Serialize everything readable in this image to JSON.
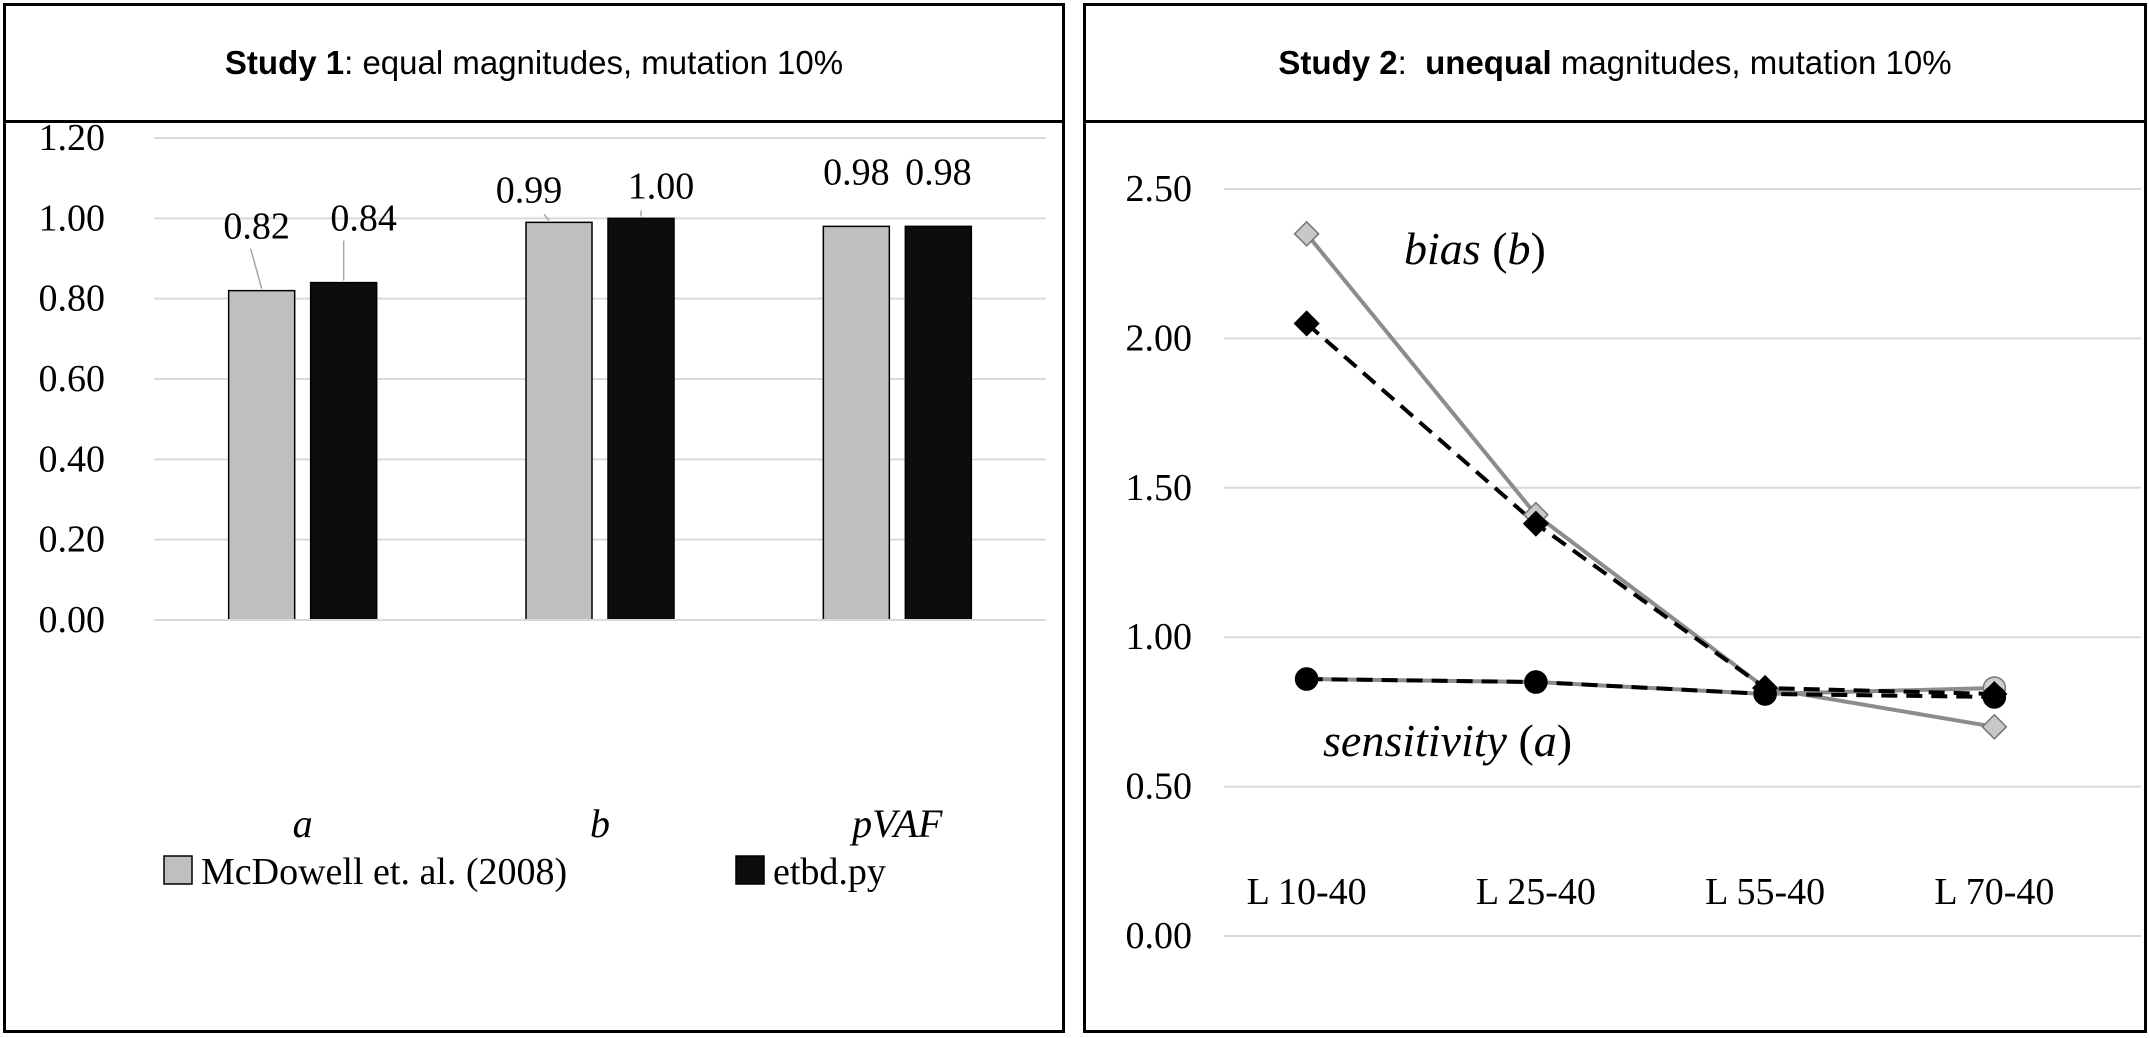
{
  "study1": {
    "title_bold": "Study 1",
    "title_rest": ": equal magnitudes, mutation 10%"
  },
  "study2": {
    "title_bold": "Study 2",
    "title_sep": ":  ",
    "title_bold2": "unequal",
    "title_rest": " magnitudes, mutation 10%"
  },
  "chart_data": [
    {
      "type": "bar",
      "categories": [
        "a",
        "b",
        "pVAF"
      ],
      "series": [
        {
          "name": "McDowell et. al. (2008)",
          "values": [
            0.82,
            0.99,
            0.98
          ],
          "labels": [
            "0.82",
            "0.99",
            "0.98"
          ],
          "color": "#bfbfbf"
        },
        {
          "name": "etbd.py",
          "values": [
            0.84,
            1.0,
            0.98
          ],
          "labels": [
            "0.84",
            "1.00",
            "0.98"
          ],
          "color": "#0d0d0d"
        }
      ],
      "yticks": [
        "0.00",
        "0.20",
        "0.40",
        "0.60",
        "0.80",
        "1.00",
        "1.20"
      ],
      "ylim": [
        0,
        1.2
      ],
      "grid": true,
      "legend": "bottom"
    },
    {
      "type": "line",
      "categories": [
        "L 10-40",
        "L 25-40",
        "L 55-40",
        "L 70-40"
      ],
      "series": [
        {
          "group": "bias",
          "style": "solid",
          "marker": "diamond",
          "color": "#8c8c8c",
          "values": [
            2.35,
            1.41,
            0.83,
            0.7
          ]
        },
        {
          "group": "bias",
          "style": "dashed",
          "marker": "diamond",
          "color": "#000000",
          "values": [
            2.05,
            1.38,
            0.83,
            0.81
          ]
        },
        {
          "group": "sensitivity",
          "style": "solid",
          "marker": "circle",
          "color": "#8c8c8c",
          "values": [
            0.86,
            0.85,
            0.81,
            0.83
          ]
        },
        {
          "group": "sensitivity",
          "style": "dashed",
          "marker": "circle",
          "color": "#000000",
          "values": [
            0.86,
            0.85,
            0.81,
            0.8
          ]
        }
      ],
      "annotations": {
        "bias_word": "bias",
        "bias_sym": "b",
        "sens_word": "sensitivity",
        "sens_sym": "a"
      },
      "yticks": [
        "0.00",
        "0.50",
        "1.00",
        "1.50",
        "2.00",
        "2.50"
      ],
      "ylim": [
        0,
        2.5
      ],
      "grid": true
    }
  ]
}
